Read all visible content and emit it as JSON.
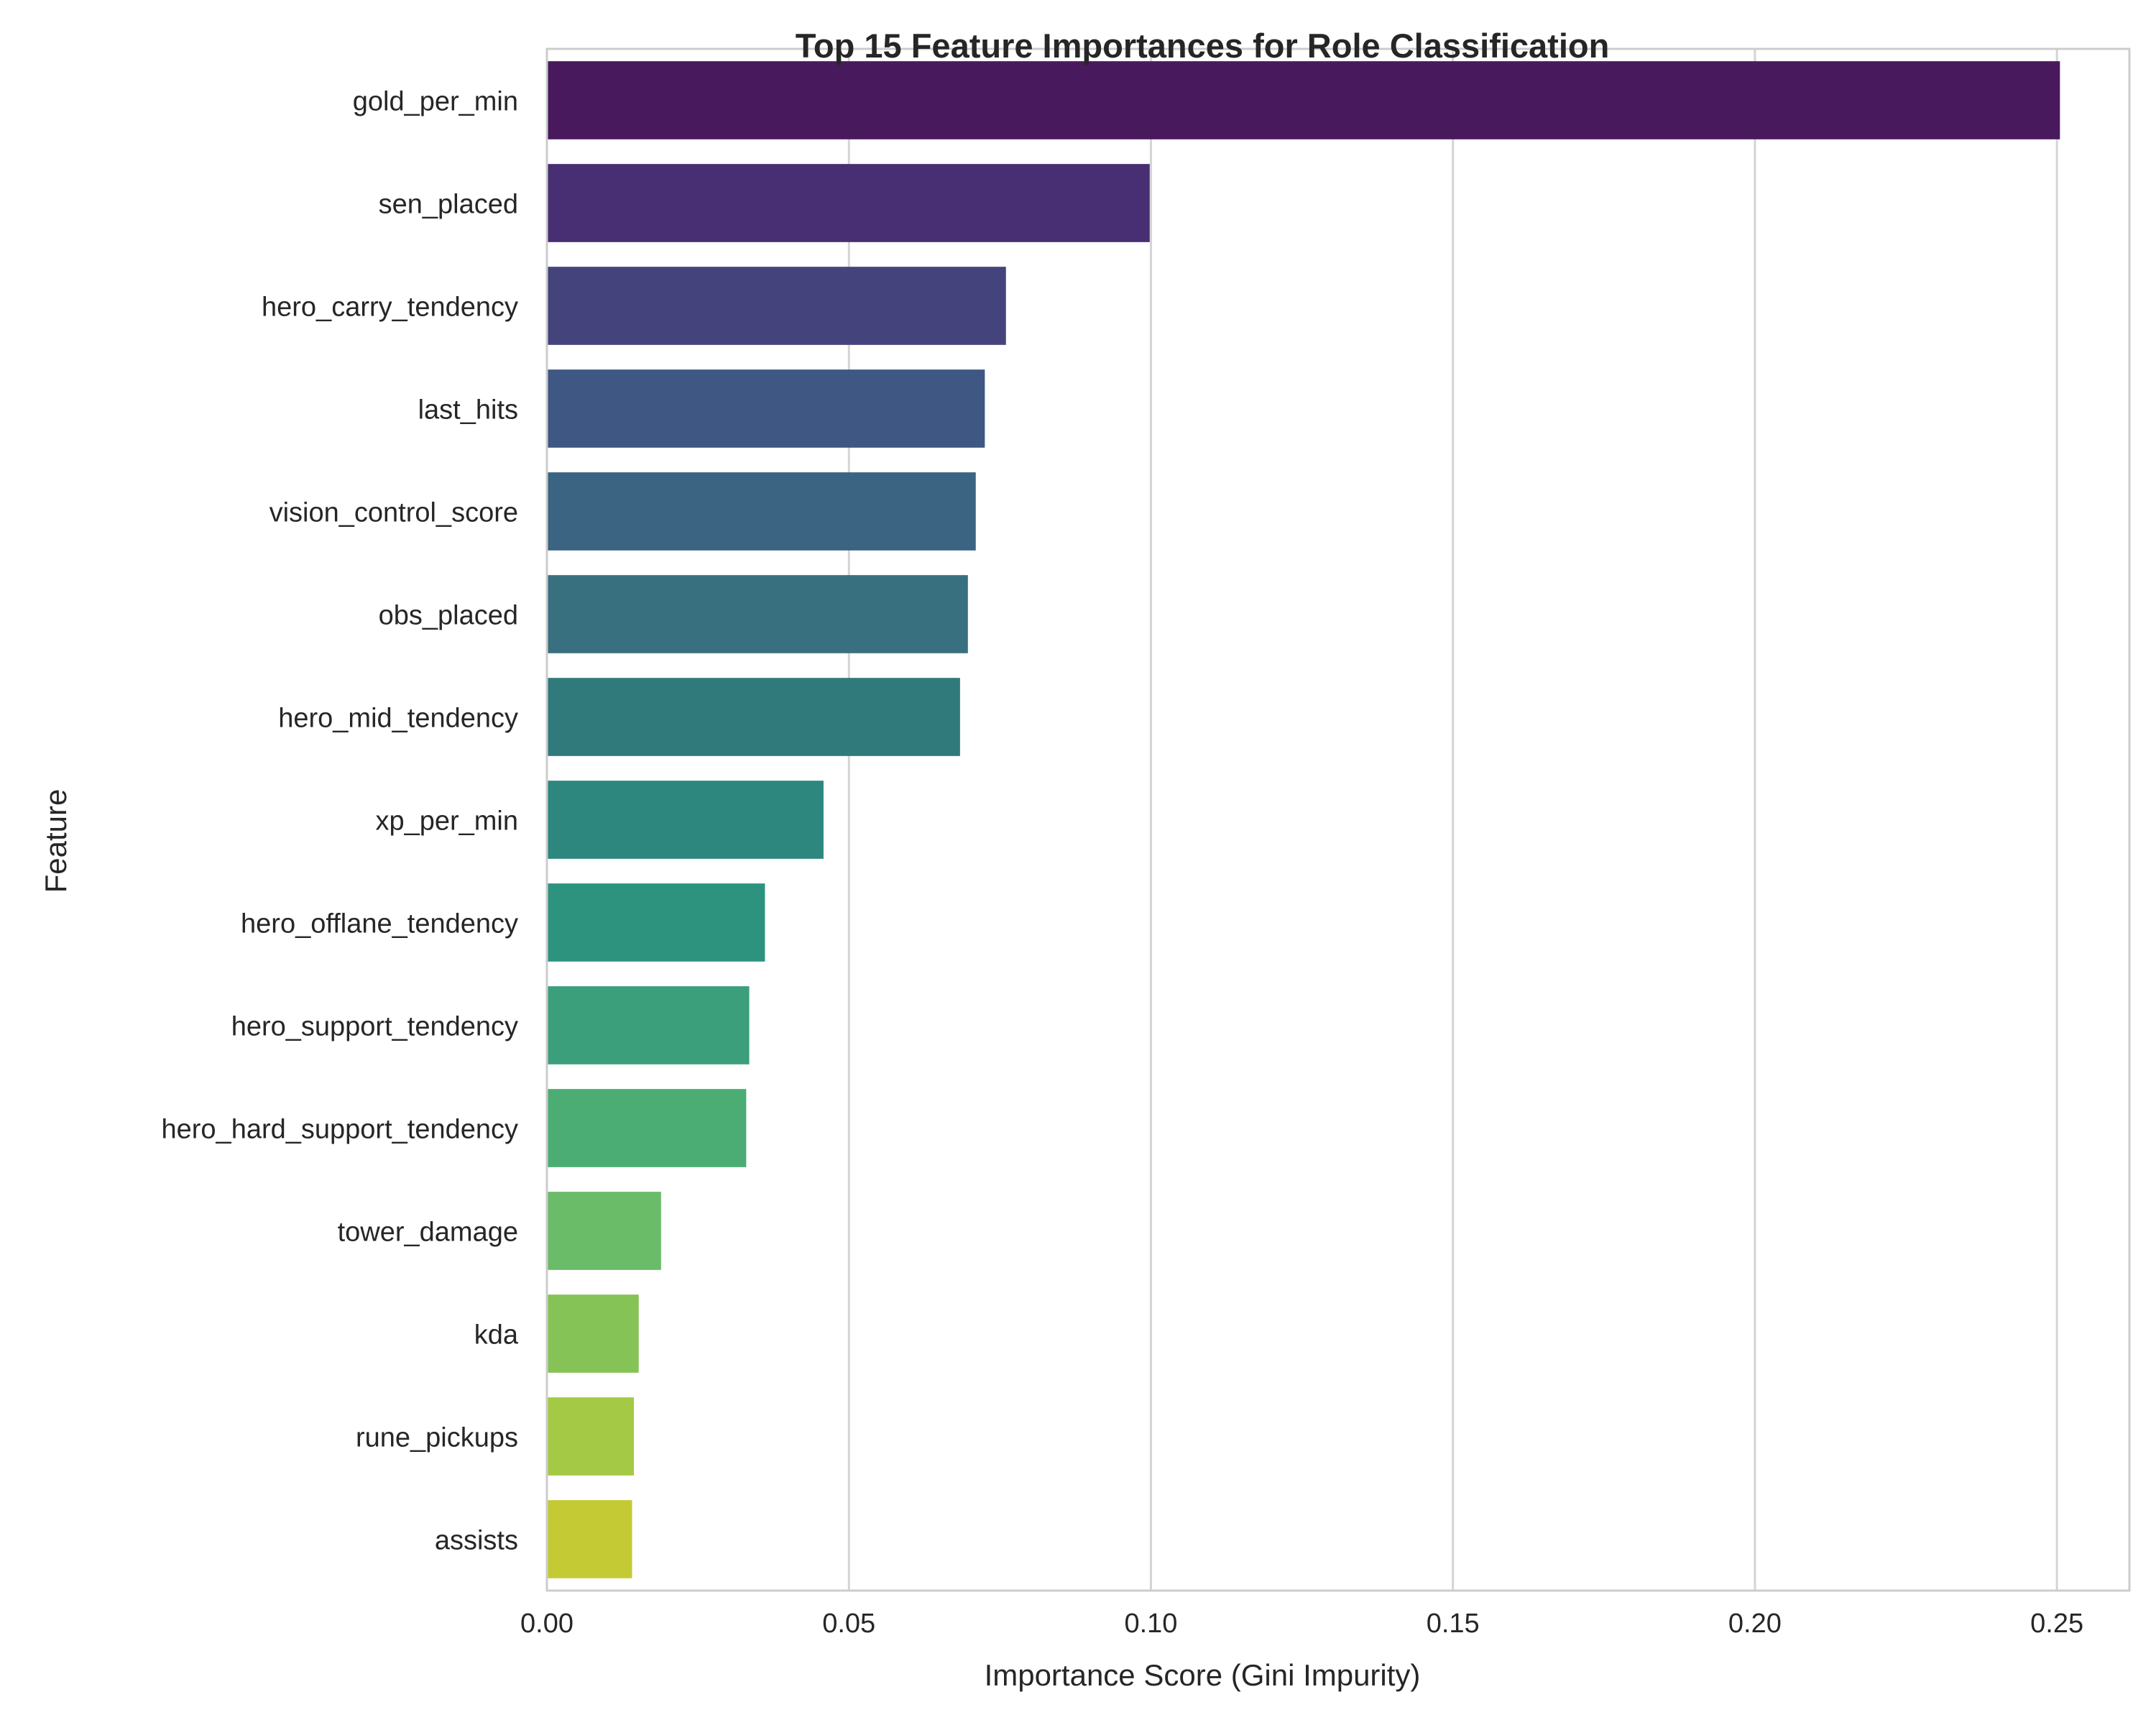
{
  "chart_data": {
    "type": "bar",
    "orientation": "horizontal",
    "title": "Top 15 Feature Importances for Role Classification",
    "xlabel": "Importance Score (Gini Impurity)",
    "ylabel": "Feature",
    "xlim": [
      0,
      0.262
    ],
    "xticks": [
      0.0,
      0.05,
      0.1,
      0.15,
      0.2,
      0.25
    ],
    "xtick_labels": [
      "0.00",
      "0.05",
      "0.10",
      "0.15",
      "0.20",
      "0.25"
    ],
    "grid": "vertical",
    "categories": [
      "gold_per_min",
      "sen_placed",
      "hero_carry_tendency",
      "last_hits",
      "vision_control_score",
      "obs_placed",
      "hero_mid_tendency",
      "xp_per_min",
      "hero_offlane_tendency",
      "hero_support_tendency",
      "hero_hard_support_tendency",
      "tower_damage",
      "kda",
      "rune_pickups",
      "assists"
    ],
    "values": [
      0.2505,
      0.0998,
      0.076,
      0.0725,
      0.071,
      0.0697,
      0.0684,
      0.0458,
      0.0361,
      0.0335,
      0.033,
      0.0189,
      0.0152,
      0.0144,
      0.0141
    ],
    "colors": [
      "#481A5D",
      "#482E72",
      "#45437C",
      "#3E5783",
      "#3A6481",
      "#387080",
      "#307A7C",
      "#2D877E",
      "#2D937F",
      "#3A9F7A",
      "#4CAD74",
      "#6ABC68",
      "#85C356",
      "#A4C944",
      "#C4CA33"
    ]
  }
}
